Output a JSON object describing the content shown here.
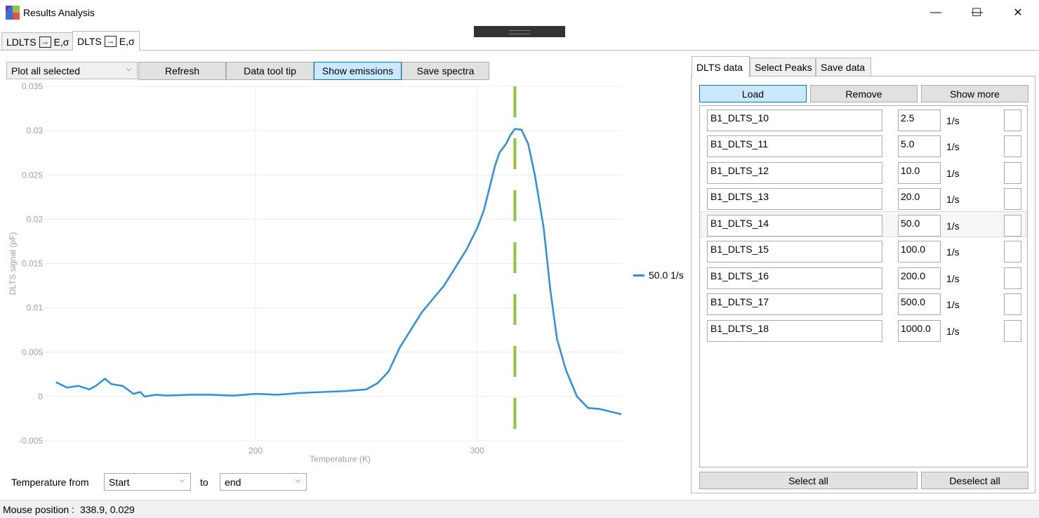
{
  "window": {
    "title": "Results Analysis",
    "controls": {
      "minimize": "—",
      "maximize": "☐",
      "close": "✕"
    }
  },
  "outer_tabs": [
    {
      "prefix": "LDLTS",
      "arrow": "→",
      "suffix": "E,σ",
      "active": false
    },
    {
      "prefix": "DLTS",
      "arrow": "→",
      "suffix": "E,σ",
      "active": true
    }
  ],
  "toolbar": {
    "plot_select": "Plot all selected",
    "refresh": "Refresh",
    "data_tool_tip": "Data tool tip",
    "show_emissions": "Show emissions",
    "save_spectra": "Save spectra"
  },
  "temperature_range": {
    "label_from": "Temperature from",
    "from_value": "Start",
    "label_to": "to",
    "to_value": "end"
  },
  "chart_data": {
    "type": "line",
    "xlabel": "Temperature (K)",
    "ylabel": "DLTS signal (pF)",
    "xlim": [
      105,
      365
    ],
    "ylim": [
      -0.005,
      0.035
    ],
    "xticks": [
      200,
      300
    ],
    "yticks": [
      -0.005,
      0,
      0.005,
      0.01,
      0.015,
      0.02,
      0.025,
      0.03,
      0.035
    ],
    "ytick_labels": [
      "-0.005",
      "0",
      "0.005",
      "0.01",
      "0.015",
      "0.02",
      "0.025",
      "0.03",
      "0.035"
    ],
    "grid": true,
    "legend_position": "right",
    "series": [
      {
        "name": "50.0 1/s",
        "color": "#2b8fe3",
        "x": [
          110,
          115,
          120,
          125,
          128,
          130,
          132,
          135,
          140,
          145,
          148,
          150,
          155,
          160,
          170,
          180,
          190,
          200,
          210,
          220,
          230,
          240,
          245,
          250,
          255,
          260,
          265,
          270,
          275,
          280,
          285,
          290,
          295,
          300,
          303,
          306,
          308,
          310,
          313,
          315,
          317,
          320,
          323,
          326,
          330,
          333,
          336,
          340,
          345,
          350,
          355,
          360,
          365
        ],
        "y": [
          0.0016,
          0.001,
          0.0012,
          0.0008,
          0.0012,
          0.0016,
          0.002,
          0.0014,
          0.0012,
          0.0003,
          0.0005,
          0.0,
          0.0002,
          0.0001,
          0.0002,
          0.0002,
          0.0001,
          0.0003,
          0.0002,
          0.0004,
          0.0005,
          0.0006,
          0.0007,
          0.0008,
          0.0015,
          0.0028,
          0.0055,
          0.0075,
          0.0095,
          0.011,
          0.0125,
          0.0145,
          0.0165,
          0.019,
          0.021,
          0.024,
          0.026,
          0.0275,
          0.0285,
          0.0295,
          0.0302,
          0.0301,
          0.0285,
          0.025,
          0.019,
          0.012,
          0.0065,
          0.003,
          0.0,
          -0.0013,
          -0.0014,
          -0.0017,
          -0.002
        ]
      }
    ],
    "marker_line": {
      "x": 317,
      "color": "#8dc63f",
      "style": "dashed"
    }
  },
  "right_panel": {
    "tabs": [
      "DLTS data",
      "Select Peaks",
      "Save data"
    ],
    "load": "Load",
    "remove": "Remove",
    "show_more": "Show more",
    "unit": "1/s",
    "rows": [
      {
        "name": "B1_DLTS_10",
        "value": "2.5"
      },
      {
        "name": "B1_DLTS_11",
        "value": "5.0"
      },
      {
        "name": "B1_DLTS_12",
        "value": "10.0"
      },
      {
        "name": "B1_DLTS_13",
        "value": "20.0"
      },
      {
        "name": "B1_DLTS_14",
        "value": "50.0"
      },
      {
        "name": "B1_DLTS_15",
        "value": "100.0"
      },
      {
        "name": "B1_DLTS_16",
        "value": "200.0"
      },
      {
        "name": "B1_DLTS_17",
        "value": "500.0"
      },
      {
        "name": "B1_DLTS_18",
        "value": "1000.0"
      }
    ],
    "select_all": "Select all",
    "deselect_all": "Deselect all"
  },
  "status": {
    "label": "Mouse position :",
    "value": "338.9, 0.029"
  }
}
